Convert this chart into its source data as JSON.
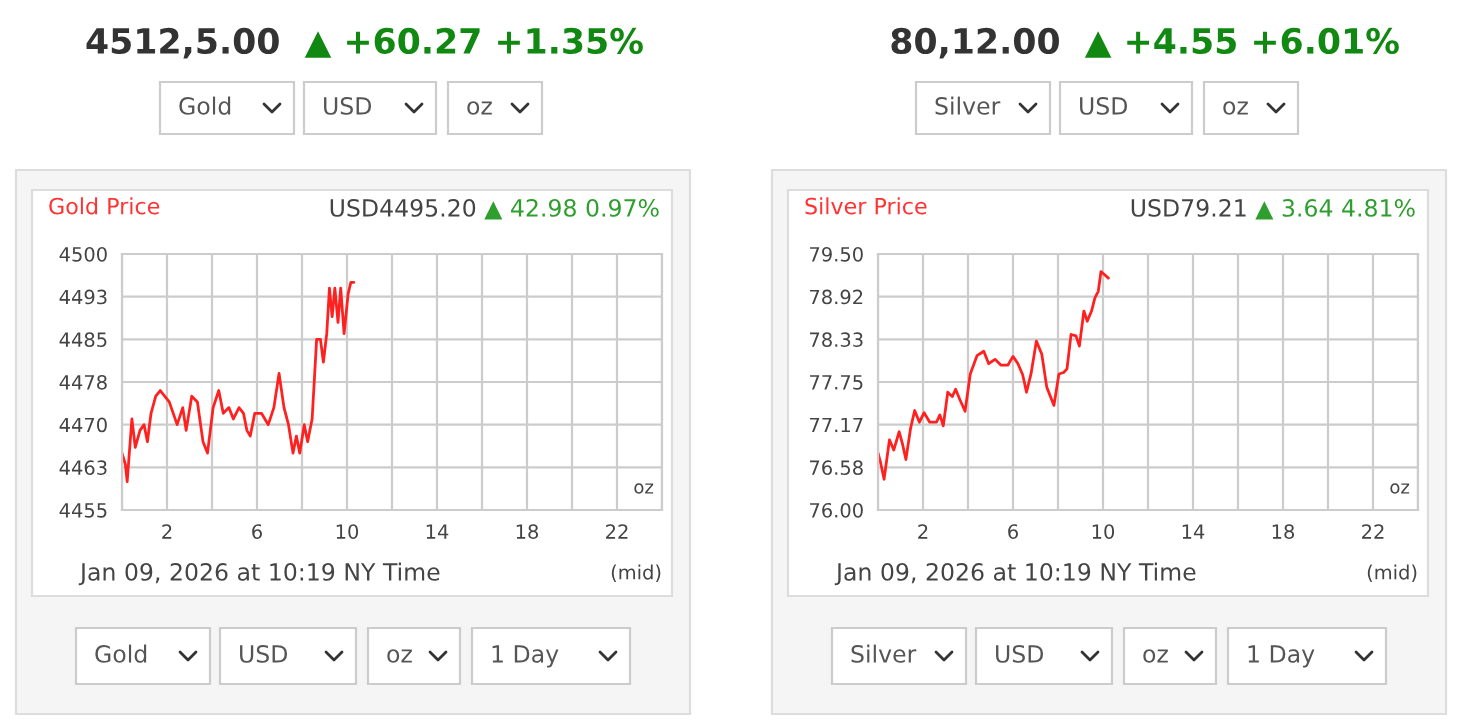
{
  "chart_data": [
    {
      "type": "line",
      "title": "Gold Price",
      "subtitle": "USD4495.20",
      "x": [
        0,
        0.15,
        0.23,
        0.44,
        0.59,
        0.8,
        0.98,
        1.13,
        1.29,
        1.5,
        1.7,
        2.1,
        2.45,
        2.7,
        2.85,
        3.1,
        3.35,
        3.6,
        3.8,
        4.05,
        4.3,
        4.5,
        4.75,
        4.95,
        5.2,
        5.4,
        5.55,
        5.7,
        5.9,
        6.2,
        6.5,
        6.75,
        6.98,
        7.2,
        7.4,
        7.6,
        7.75,
        7.9,
        8.1,
        8.25,
        8.45,
        8.65,
        8.82,
        8.95,
        9.1,
        9.22,
        9.34,
        9.46,
        9.6,
        9.72,
        9.87,
        10.05,
        10.17,
        10.3
      ],
      "series": [
        {
          "color": "#ff2020",
          "values": [
            4465,
            4463,
            4460,
            4471,
            4466,
            4469,
            4470,
            4467,
            4472,
            4475,
            4476,
            4474,
            4470,
            4473,
            4469,
            4475,
            4474,
            4467,
            4465,
            4473,
            4476,
            4472,
            4473,
            4471,
            4473,
            4472,
            4469,
            4468,
            4472,
            4472,
            4470,
            4473,
            4479,
            4473,
            4470,
            4465,
            4468,
            4465,
            4470,
            4467,
            4471,
            4485,
            4485,
            4481,
            4486,
            4494,
            4489,
            4494,
            4488,
            4494,
            4486,
            4493,
            4495,
            4495
          ]
        }
      ],
      "xlim": [
        0,
        24
      ],
      "ylim": [
        4455,
        4500
      ],
      "xticks": [
        {
          "value": 0,
          "label": null
        },
        2,
        {
          "value": 4,
          "label": null
        },
        6,
        {
          "value": 8,
          "label": null
        },
        10,
        {
          "value": 12,
          "label": null
        },
        14,
        {
          "value": 16,
          "label": null
        },
        18,
        {
          "value": 20,
          "label": null
        },
        22,
        {
          "value": 24,
          "label": null
        }
      ],
      "yticks": [
        4455,
        {
          "value": 4462.5,
          "label": "4463"
        },
        4470,
        {
          "value": 4477.5,
          "label": "4478"
        },
        4485,
        {
          "value": 4492.5,
          "label": "4493"
        },
        4500
      ],
      "grid": true,
      "annotations": [
        "4512,5.00",
        "▲ +60.27 +1.35%",
        "▲ 42.98 0.97%",
        "Jan 09, 2026 at 10:19 NY Time",
        "(mid)",
        "oz",
        "Gold",
        "USD",
        "oz",
        "Gold",
        "USD",
        "oz",
        "1 Day"
      ]
    },
    {
      "type": "line",
      "title": "Silver Price",
      "subtitle": "USD79.21",
      "x": [
        0,
        0.12,
        0.27,
        0.51,
        0.7,
        0.94,
        1.09,
        1.24,
        1.45,
        1.63,
        1.84,
        2.05,
        2.3,
        2.6,
        2.75,
        2.9,
        3.1,
        3.3,
        3.45,
        3.65,
        3.87,
        4.1,
        4.4,
        4.7,
        4.92,
        5.2,
        5.47,
        5.77,
        6.0,
        6.22,
        6.43,
        6.6,
        6.8,
        7.04,
        7.28,
        7.5,
        7.82,
        8.04,
        8.25,
        8.4,
        8.58,
        8.8,
        8.95,
        9.15,
        9.3,
        9.49,
        9.64,
        9.79,
        9.91,
        10.06,
        10.24
      ],
      "series": [
        {
          "color": "#ff2020",
          "values": [
            76.78,
            76.64,
            76.42,
            76.96,
            76.82,
            77.07,
            76.9,
            76.69,
            77.12,
            77.36,
            77.2,
            77.33,
            77.2,
            77.2,
            77.3,
            77.15,
            77.61,
            77.55,
            77.65,
            77.5,
            77.35,
            77.86,
            78.11,
            78.17,
            78.0,
            78.06,
            77.98,
            77.98,
            78.1,
            78.0,
            77.85,
            77.61,
            77.86,
            78.31,
            78.13,
            77.68,
            77.43,
            77.86,
            77.88,
            77.93,
            78.4,
            78.38,
            78.24,
            78.72,
            78.58,
            78.72,
            78.9,
            78.99,
            79.26,
            79.22,
            79.17
          ]
        }
      ],
      "xlim": [
        0,
        24
      ],
      "ylim": [
        76.0,
        79.5
      ],
      "xticks": [
        {
          "value": 0,
          "label": null
        },
        2,
        {
          "value": 4,
          "label": null
        },
        6,
        {
          "value": 8,
          "label": null
        },
        10,
        {
          "value": 12,
          "label": null
        },
        14,
        {
          "value": 16,
          "label": null
        },
        18,
        {
          "value": 20,
          "label": null
        },
        22,
        {
          "value": 24,
          "label": null
        }
      ],
      "yticks": [
        {
          "value": 76.0,
          "label": "76.00"
        },
        {
          "value": 76.5833,
          "label": "76.58"
        },
        {
          "value": 77.1667,
          "label": "77.17"
        },
        {
          "value": 77.75,
          "label": "77.75"
        },
        {
          "value": 78.3333,
          "label": "78.33"
        },
        {
          "value": 78.9167,
          "label": "78.92"
        },
        {
          "value": 79.5,
          "label": "79.50"
        }
      ],
      "grid": true,
      "annotations": [
        "80,12.00",
        "▲ +4.55 +6.01%",
        "▲ 3.64 4.81%",
        "Jan 09, 2026 at 10:19 NY Time",
        "(mid)",
        "oz",
        "Silver",
        "USD",
        "oz",
        "Silver",
        "USD",
        "oz",
        "1 Day"
      ]
    }
  ]
}
